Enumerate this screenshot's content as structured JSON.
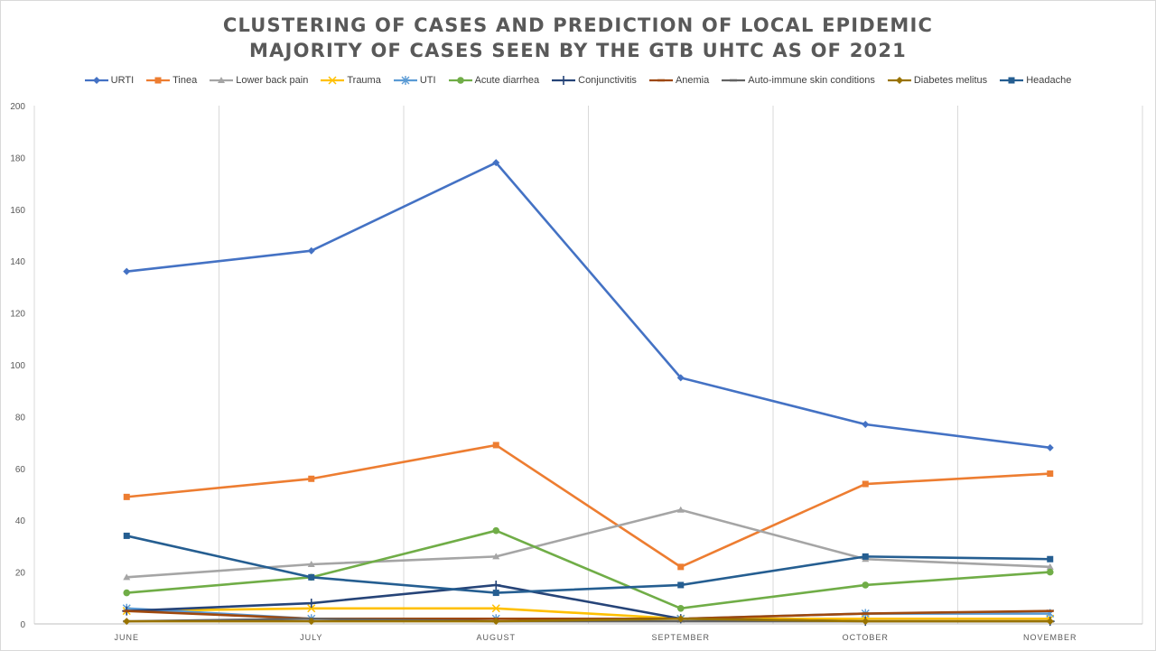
{
  "chart_data": {
    "type": "line",
    "title_line1": "CLUSTERING OF CASES AND PREDICTION OF LOCAL EPIDEMIC",
    "title_line2": "MAJORITY OF CASES SEEN BY THE GTB UHTC AS OF 2021",
    "categories": [
      "JUNE",
      "JULY",
      "AUGUST",
      "SEPTEMBER",
      "OCTOBER",
      "NOVEMBER"
    ],
    "ylim": [
      0,
      200
    ],
    "yticks": [
      0,
      20,
      40,
      60,
      80,
      100,
      120,
      140,
      160,
      180,
      200
    ],
    "grid": "vertical",
    "legend_position": "top",
    "series": [
      {
        "name": "URTI",
        "color": "#4472c4",
        "marker": "diamond",
        "values": [
          136,
          144,
          178,
          95,
          77,
          68
        ]
      },
      {
        "name": "Tinea",
        "color": "#ed7d31",
        "marker": "square",
        "values": [
          49,
          56,
          69,
          22,
          54,
          58
        ]
      },
      {
        "name": "Lower back pain",
        "color": "#a5a5a5",
        "marker": "triangle",
        "values": [
          18,
          23,
          26,
          44,
          25,
          22
        ]
      },
      {
        "name": "Trauma",
        "color": "#ffc000",
        "marker": "x",
        "values": [
          5,
          6,
          6,
          2,
          2,
          2
        ]
      },
      {
        "name": "UTI",
        "color": "#5b9bd5",
        "marker": "star",
        "values": [
          6,
          2,
          2,
          2,
          4,
          4
        ]
      },
      {
        "name": "Acute diarrhea",
        "color": "#70ad47",
        "marker": "circle",
        "values": [
          12,
          18,
          36,
          6,
          15,
          20
        ]
      },
      {
        "name": "Conjunctivitis",
        "color": "#264478",
        "marker": "plus",
        "values": [
          5,
          8,
          15,
          2,
          1,
          1
        ]
      },
      {
        "name": "Anemia",
        "color": "#9e480e",
        "marker": "dash",
        "values": [
          5,
          2,
          2,
          2,
          4,
          5
        ]
      },
      {
        "name": "Auto-immune skin conditions",
        "color": "#636363",
        "marker": "dash",
        "values": [
          1,
          2,
          1,
          1,
          1,
          1
        ]
      },
      {
        "name": "Diabetes melitus",
        "color": "#997300",
        "marker": "diamond",
        "values": [
          1,
          1,
          1,
          2,
          1,
          1
        ]
      },
      {
        "name": "Headache",
        "color": "#255e91",
        "marker": "square",
        "values": [
          34,
          18,
          12,
          15,
          26,
          25
        ]
      }
    ]
  }
}
